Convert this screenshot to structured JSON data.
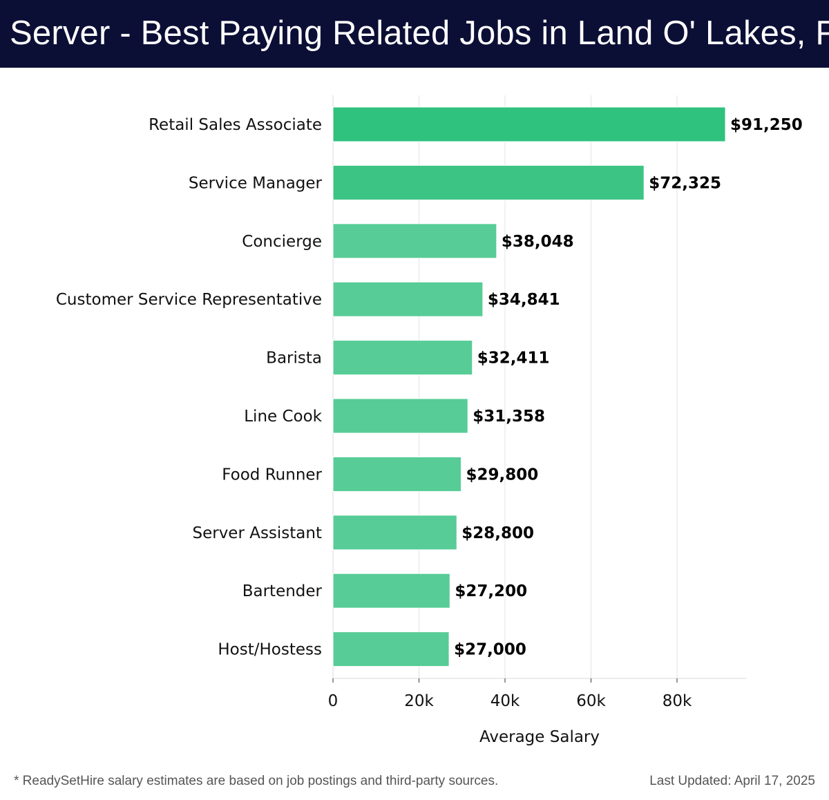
{
  "header": {
    "title": "Server - Best Paying Related Jobs in Land O' Lakes, FL"
  },
  "footer": {
    "note": "* ReadySetHire salary estimates are based on job postings and third-party sources.",
    "updated": "Last Updated: April 17, 2025"
  },
  "colors": {
    "header_bg": "#0c0f35",
    "bar_top": "#2ec27e",
    "bar": "#57cc96"
  },
  "chart_data": {
    "type": "bar",
    "orientation": "horizontal",
    "title": "Server - Best Paying Related Jobs in Land O' Lakes, FL",
    "xlabel": "Average Salary",
    "ylabel": "",
    "xlim": [
      0,
      96000
    ],
    "xticks": [
      0,
      20000,
      40000,
      60000,
      80000
    ],
    "xtick_labels": [
      "0",
      "20k",
      "40k",
      "60k",
      "80k"
    ],
    "grid": true,
    "categories": [
      "Retail Sales Associate",
      "Service Manager",
      "Concierge",
      "Customer Service Representative",
      "Barista",
      "Line Cook",
      "Food Runner",
      "Server Assistant",
      "Bartender",
      "Host/Hostess"
    ],
    "values": [
      91250,
      72325,
      38048,
      34841,
      32411,
      31358,
      29800,
      28800,
      27200,
      27000
    ],
    "value_labels": [
      "$91,250",
      "$72,325",
      "$38,048",
      "$34,841",
      "$32,411",
      "$31,358",
      "$29,800",
      "$28,800",
      "$27,200",
      "$27,000"
    ]
  }
}
